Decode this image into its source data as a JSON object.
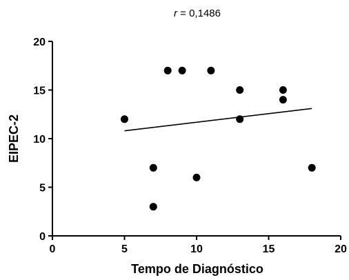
{
  "chart_data": {
    "type": "scatter",
    "title_var": "r",
    "title_value": " = 0,1486",
    "xlabel": "Tempo de Diagnóstico",
    "ylabel": "EIPEC-2",
    "xlim": [
      0,
      20
    ],
    "ylim": [
      0,
      20
    ],
    "xticks": [
      0,
      5,
      10,
      15,
      20
    ],
    "yticks": [
      0,
      5,
      10,
      15,
      20
    ],
    "grid": false,
    "points": [
      {
        "x": 5,
        "y": 12
      },
      {
        "x": 7,
        "y": 7
      },
      {
        "x": 7,
        "y": 3
      },
      {
        "x": 8,
        "y": 17
      },
      {
        "x": 9,
        "y": 17
      },
      {
        "x": 10,
        "y": 6
      },
      {
        "x": 11,
        "y": 17
      },
      {
        "x": 13,
        "y": 15
      },
      {
        "x": 13,
        "y": 12
      },
      {
        "x": 16,
        "y": 15
      },
      {
        "x": 16,
        "y": 14
      },
      {
        "x": 18,
        "y": 7
      }
    ],
    "regression_line": {
      "x": [
        5,
        18
      ],
      "y": [
        10.8,
        13.1
      ]
    },
    "colors": {
      "marker": "#000000",
      "line": "#000000",
      "axis": "#000000"
    }
  }
}
